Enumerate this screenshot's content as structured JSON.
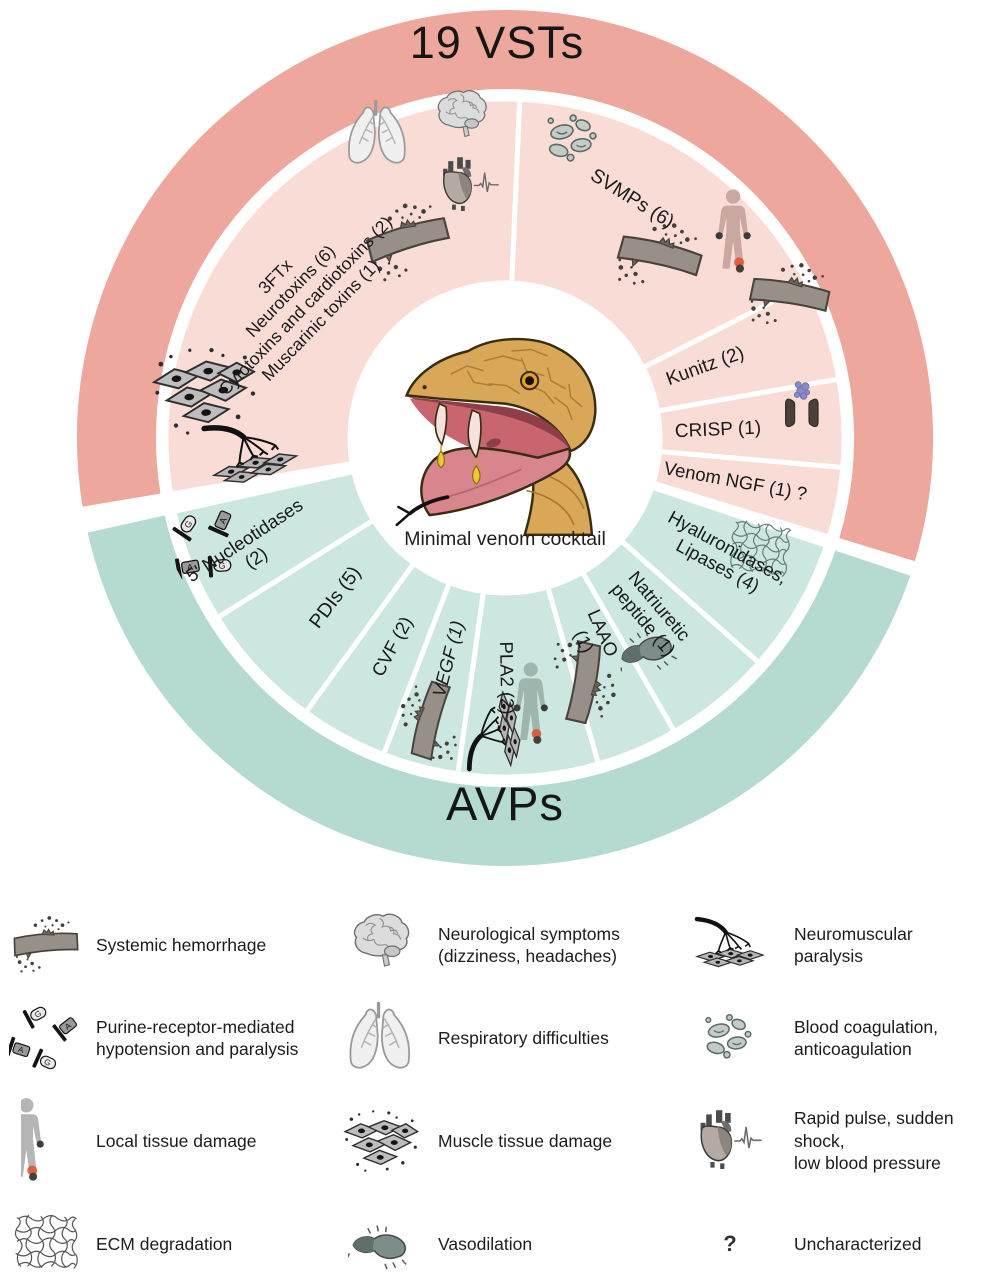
{
  "figure": {
    "top_ring_label": "19 VSTs",
    "bottom_ring_label": "AVPs",
    "center_caption": "Minimal venom cocktail"
  },
  "colors": {
    "vst_outer": "#EDA79C",
    "vst_inner": "#F9DCD5",
    "avp_outer": "#B4DAD1",
    "avp_inner": "#CCE6E0",
    "text": "#1a1a1a"
  },
  "wheel": {
    "outer_bands": [
      {
        "id": "vst-band",
        "a1": -99.5,
        "a2": 107,
        "color_key": "vst_outer"
      },
      {
        "id": "avp-band",
        "a1": 108.5,
        "a2": 257.5,
        "color_key": "avp_outer"
      }
    ],
    "segments": [
      {
        "id": "3ftx",
        "group": "vst",
        "a1": -99.5,
        "a2": 2.5,
        "lines": [
          "3FTx",
          "Neurotoxins (6)",
          "Cytotoxins and cardiotoxins (2)",
          "Muscarinic toxins (1)"
        ],
        "label": {
          "angle": -56,
          "radius": 250,
          "rotate": -46,
          "anchor": "middle",
          "size": 17.5,
          "lineHeight": 21
        },
        "icons": [
          {
            "name": "lungs",
            "angle": -22.7,
            "radius": 329,
            "size": 78
          },
          {
            "name": "brain",
            "angle": -7.7,
            "radius": 323,
            "size": 62
          },
          {
            "name": "heart-ecg",
            "angle": -7.9,
            "radius": 255,
            "size": 64
          },
          {
            "name": "vessel-hemorrhage",
            "angle": -26.1,
            "radius": 220,
            "size": 84,
            "rotate": -12
          },
          {
            "name": "muscle-tissue",
            "angle": -80.9,
            "radius": 304,
            "size": 108,
            "rotate": -6
          },
          {
            "name": "neuromuscular-junction",
            "angle": -93.2,
            "radius": 253,
            "size": 92,
            "rotate": -12
          }
        ]
      },
      {
        "id": "svmps",
        "group": "vst",
        "a1": 2.5,
        "a2": 63,
        "lines": [
          "SVMPs (6)"
        ],
        "label": {
          "angle": 28,
          "radius": 272,
          "rotate": 32,
          "anchor": "middle",
          "size": 19.5
        },
        "icons": [
          {
            "name": "blood-cells",
            "angle": 13,
            "radius": 306,
            "size": 66
          },
          {
            "name": "human-figure",
            "angle": 48,
            "radius": 307,
            "size": 90,
            "color": "#c9a8a2"
          },
          {
            "name": "vessel-hemorrhage",
            "angle": 40.5,
            "radius": 238,
            "size": 84,
            "rotate": 18
          }
        ]
      },
      {
        "id": "kunitz",
        "group": "vst",
        "a1": 63,
        "a2": 80,
        "lines": [
          "Kunitz (2)"
        ],
        "label": {
          "angle": 70,
          "radius": 172,
          "rotate": -20,
          "anchor": "start",
          "size": 19
        },
        "icons": [
          {
            "name": "vessel-hemorrhage",
            "angle": 63.5,
            "radius": 318,
            "size": 80,
            "rotate": 14
          }
        ]
      },
      {
        "id": "crisp",
        "group": "vst",
        "a1": 80,
        "a2": 95,
        "lines": [
          "CRISP (1)"
        ],
        "label": {
          "angle": 87.5,
          "radius": 170,
          "rotate": -2.5,
          "anchor": "start",
          "size": 19
        },
        "icons": [
          {
            "name": "ion-channel",
            "angle": 84.5,
            "radius": 300,
            "size": 60
          }
        ]
      },
      {
        "id": "venom-ngf",
        "group": "vst",
        "a1": 95,
        "a2": 107,
        "lines": [
          "Venom NGF (1) ?"
        ],
        "label": {
          "angle": 100.5,
          "radius": 162,
          "rotate": 10.5,
          "anchor": "start",
          "size": 18.5
        },
        "icons": []
      },
      {
        "id": "hyaluronidases-lipases",
        "group": "avp",
        "a1": 108.5,
        "a2": 131.5,
        "lines": [
          "Hyaluronidases,",
          "Lipases (4)"
        ],
        "label": {
          "angle": 118.5,
          "radius": 248,
          "rotate": 28.5,
          "anchor": "middle",
          "size": 18.5,
          "lineHeight": 21
        },
        "icons": [
          {
            "name": "ecm-mesh",
            "angle": 113.8,
            "radius": 278,
            "size": 62,
            "rotate": 8,
            "color": "#5d7a74"
          }
        ]
      },
      {
        "id": "natriuretic-peptide",
        "group": "avp",
        "a1": 131.5,
        "a2": 150,
        "lines": [
          "Natriuretic",
          "peptide (1)"
        ],
        "label": {
          "angle": 140,
          "radius": 228,
          "rotate": 50,
          "anchor": "middle",
          "size": 18.5,
          "lineHeight": 21
        },
        "icons": [
          {
            "name": "vasodilation-vessel",
            "angle": 146,
            "radius": 254,
            "size": 64,
            "rotate": -20
          }
        ]
      },
      {
        "id": "laao",
        "group": "avp",
        "a1": 150,
        "a2": 164,
        "lines": [
          "LAAO",
          "(1)"
        ],
        "label": {
          "angle": 156,
          "radius": 218,
          "rotate": 66,
          "anchor": "middle",
          "size": 18.5,
          "lineHeight": 21
        },
        "icons": [
          {
            "name": "vessel-hemorrhage",
            "angle": 162.5,
            "radius": 256,
            "size": 82,
            "rotate": 105
          }
        ]
      },
      {
        "id": "pla2",
        "group": "avp",
        "a1": 164,
        "a2": 188,
        "lines": [
          "PLA2 (2)"
        ],
        "label": {
          "angle": 179.5,
          "radius": 240,
          "rotate": 89,
          "anchor": "middle",
          "size": 18.5
        },
        "icons": [
          {
            "name": "neuromuscular-junction",
            "angle": 182,
            "radius": 292,
            "size": 80,
            "rotate": -95
          },
          {
            "name": "human-figure",
            "angle": 174.5,
            "radius": 268,
            "size": 88,
            "color": "#9fb6ae"
          }
        ]
      },
      {
        "id": "vegf",
        "group": "avp",
        "a1": 188,
        "a2": 201,
        "lines": [
          "VEGF (1)"
        ],
        "label": {
          "angle": 194.5,
          "radius": 228,
          "rotate": -75.5,
          "anchor": "middle",
          "size": 18.5,
          "italic": true
        },
        "icons": [
          {
            "name": "vessel-hemorrhage",
            "angle": 194.5,
            "radius": 292,
            "size": 78,
            "rotate": -70
          }
        ]
      },
      {
        "id": "cvf",
        "group": "avp",
        "a1": 201,
        "a2": 216,
        "lines": [
          "CVF (2)"
        ],
        "label": {
          "angle": 208.5,
          "radius": 237,
          "rotate": -61.5,
          "anchor": "middle",
          "size": 18.5
        },
        "icons": []
      },
      {
        "id": "pdis",
        "group": "avp",
        "a1": 216,
        "a2": 238,
        "lines": [
          "PDIs (5)"
        ],
        "label": {
          "angle": 227,
          "radius": 233,
          "rotate": -53,
          "anchor": "middle",
          "size": 19.5
        },
        "icons": []
      },
      {
        "id": "5-nucleotidases",
        "group": "avp",
        "a1": 238,
        "a2": 257.5,
        "lines": [
          "5' Nucleotidases",
          "(2)"
        ],
        "label": {
          "angle": 246.5,
          "radius": 278,
          "rotate": -33.5,
          "anchor": "middle",
          "size": 18.5,
          "lineHeight": 21
        },
        "icons": [
          {
            "name": "purine-receptors",
            "angle": 250.5,
            "radius": 315,
            "size": 80,
            "rotate": -28
          }
        ]
      }
    ]
  },
  "legend": {
    "question_glyph": "?",
    "items": [
      {
        "icon": "vessel-hemorrhage",
        "label": "Systemic hemorrhage"
      },
      {
        "icon": "brain",
        "label": "Neurological symptoms\n(dizziness, headaches)"
      },
      {
        "icon": "neuromuscular-junction",
        "label": "Neuromuscular\nparalysis"
      },
      {
        "icon": "purine-receptors",
        "label": "Purine-receptor-mediated\nhypotension and paralysis"
      },
      {
        "icon": "lungs",
        "label": "Respiratory difficulties"
      },
      {
        "icon": "blood-cells",
        "label": "Blood coagulation,\nanticoagulation"
      },
      {
        "icon": "human-figure",
        "label": "Local tissue damage"
      },
      {
        "icon": "muscle-tissue",
        "label": "Muscle tissue damage"
      },
      {
        "icon": "heart-ecg",
        "label": "Rapid pulse, sudden shock,\nlow blood pressure"
      },
      {
        "icon": "ecm-mesh",
        "label": "ECM degradation"
      },
      {
        "icon": "vasodilation-vessel",
        "label": "Vasodilation"
      },
      {
        "icon": "question-mark",
        "label": "Uncharacterized"
      }
    ]
  }
}
